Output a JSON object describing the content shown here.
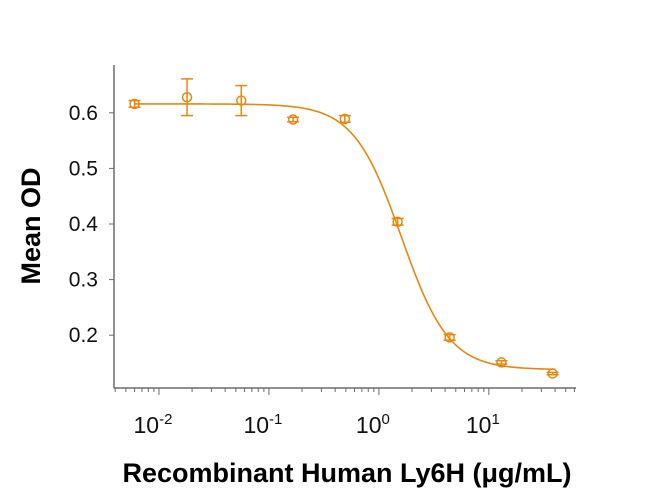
{
  "chart_data": {
    "type": "scatter",
    "title": "",
    "xlabel": "Recombinant Human Ly6H (μg/mL)",
    "ylabel": "Mean OD",
    "x_scale": "log",
    "xlim": [
      0.0039,
      62
    ],
    "ylim": [
      0.105,
      0.686
    ],
    "x_ticks": [
      {
        "value": 0.01,
        "base": "10",
        "exp": "-2"
      },
      {
        "value": 0.1,
        "base": "10",
        "exp": "-1"
      },
      {
        "value": 1,
        "base": "10",
        "exp": "0"
      },
      {
        "value": 10,
        "base": "10",
        "exp": "1"
      }
    ],
    "y_ticks": [
      {
        "value": 0.2,
        "label": "0.2"
      },
      {
        "value": 0.3,
        "label": "0.3"
      },
      {
        "value": 0.4,
        "label": "0.4"
      },
      {
        "value": 0.5,
        "label": "0.5"
      },
      {
        "value": 0.6,
        "label": "0.6"
      }
    ],
    "grid": false,
    "color": "#E8870F",
    "points": [
      {
        "x": 0.006,
        "y": 0.616,
        "err": 0.006
      },
      {
        "x": 0.018,
        "y": 0.628,
        "err": 0.033
      },
      {
        "x": 0.056,
        "y": 0.622,
        "err": 0.027
      },
      {
        "x": 0.166,
        "y": 0.588,
        "err": 0.004
      },
      {
        "x": 0.49,
        "y": 0.589,
        "err": 0.006
      },
      {
        "x": 1.48,
        "y": 0.404,
        "err": 0.006
      },
      {
        "x": 4.4,
        "y": 0.196,
        "err": 0.005
      },
      {
        "x": 13,
        "y": 0.151,
        "err": 0.003
      },
      {
        "x": 38,
        "y": 0.131,
        "err": 0.002
      }
    ],
    "fit": {
      "model": "4PL",
      "top": 0.616,
      "bottom": 0.138,
      "ec50": 1.6,
      "hill": 2.0
    }
  }
}
